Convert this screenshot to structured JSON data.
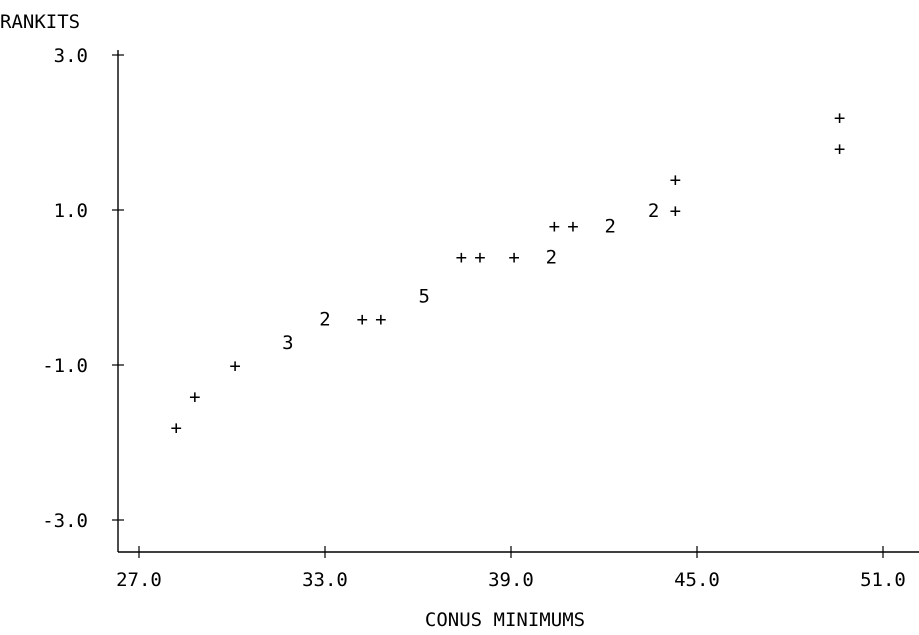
{
  "chart_data": {
    "type": "scatter",
    "title": "",
    "ylabel": "RANKITS",
    "xlabel": "CONUS MINIMUMS",
    "xlim": [
      27.0,
      51.0
    ],
    "ylim": [
      -3.0,
      3.0
    ],
    "x_ticks": [
      "27.0",
      "33.0",
      "39.0",
      "45.0",
      "51.0"
    ],
    "y_ticks": [
      "3.0",
      "1.0",
      "-1.0",
      "-3.0"
    ],
    "grid": false,
    "points": [
      {
        "x": 28.2,
        "y": -1.8,
        "symbol": "+"
      },
      {
        "x": 28.8,
        "y": -1.4,
        "symbol": "+"
      },
      {
        "x": 30.1,
        "y": -1.0,
        "symbol": "+"
      },
      {
        "x": 31.8,
        "y": -0.7,
        "symbol": "3"
      },
      {
        "x": 33.0,
        "y": -0.4,
        "symbol": "2"
      },
      {
        "x": 34.2,
        "y": -0.4,
        "symbol": "+"
      },
      {
        "x": 34.8,
        "y": -0.4,
        "symbol": "+"
      },
      {
        "x": 36.2,
        "y": -0.1,
        "symbol": "5"
      },
      {
        "x": 37.4,
        "y": 0.4,
        "symbol": "+"
      },
      {
        "x": 38.0,
        "y": 0.4,
        "symbol": "+"
      },
      {
        "x": 39.1,
        "y": 0.4,
        "symbol": "+"
      },
      {
        "x": 40.3,
        "y": 0.4,
        "symbol": "2"
      },
      {
        "x": 40.4,
        "y": 0.8,
        "symbol": "+"
      },
      {
        "x": 41.0,
        "y": 0.8,
        "symbol": "+"
      },
      {
        "x": 42.2,
        "y": 0.8,
        "symbol": "2"
      },
      {
        "x": 43.6,
        "y": 1.0,
        "symbol": "2"
      },
      {
        "x": 44.3,
        "y": 1.0,
        "symbol": "+"
      },
      {
        "x": 44.3,
        "y": 1.4,
        "symbol": "+"
      },
      {
        "x": 49.6,
        "y": 1.8,
        "symbol": "+"
      },
      {
        "x": 49.6,
        "y": 2.2,
        "symbol": "+"
      }
    ]
  }
}
